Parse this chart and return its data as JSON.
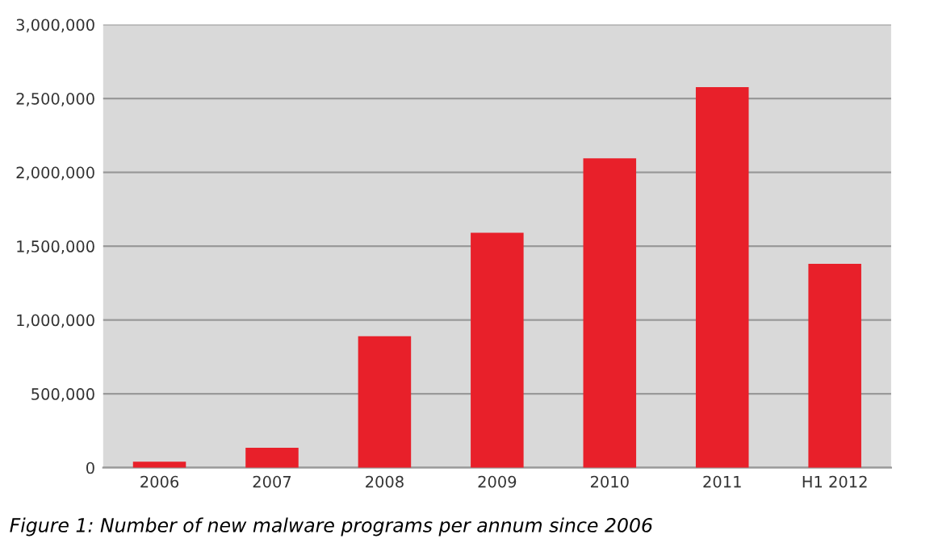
{
  "chart_data": {
    "type": "bar",
    "categories": [
      "2006",
      "2007",
      "2008",
      "2009",
      "2010",
      "2011",
      "H1 2012"
    ],
    "values": [
      40000,
      135000,
      890000,
      1590000,
      2095000,
      2577000,
      1380000
    ],
    "color": "#e8202a",
    "ylim": [
      0,
      3000000
    ],
    "yticks": [
      {
        "value": 0,
        "label": "0"
      },
      {
        "value": 500000,
        "label": "500,000"
      },
      {
        "value": 1000000,
        "label": "1,000,000"
      },
      {
        "value": 1500000,
        "label": "1,500,000"
      },
      {
        "value": 2000000,
        "label": "2,000,000"
      },
      {
        "value": 2500000,
        "label": "2,500,000"
      },
      {
        "value": 3000000,
        "label": "3,000,000"
      }
    ],
    "grid": "y",
    "annotations": [
      "Figure 1: Number of new malware programs per annum since 2006"
    ]
  }
}
